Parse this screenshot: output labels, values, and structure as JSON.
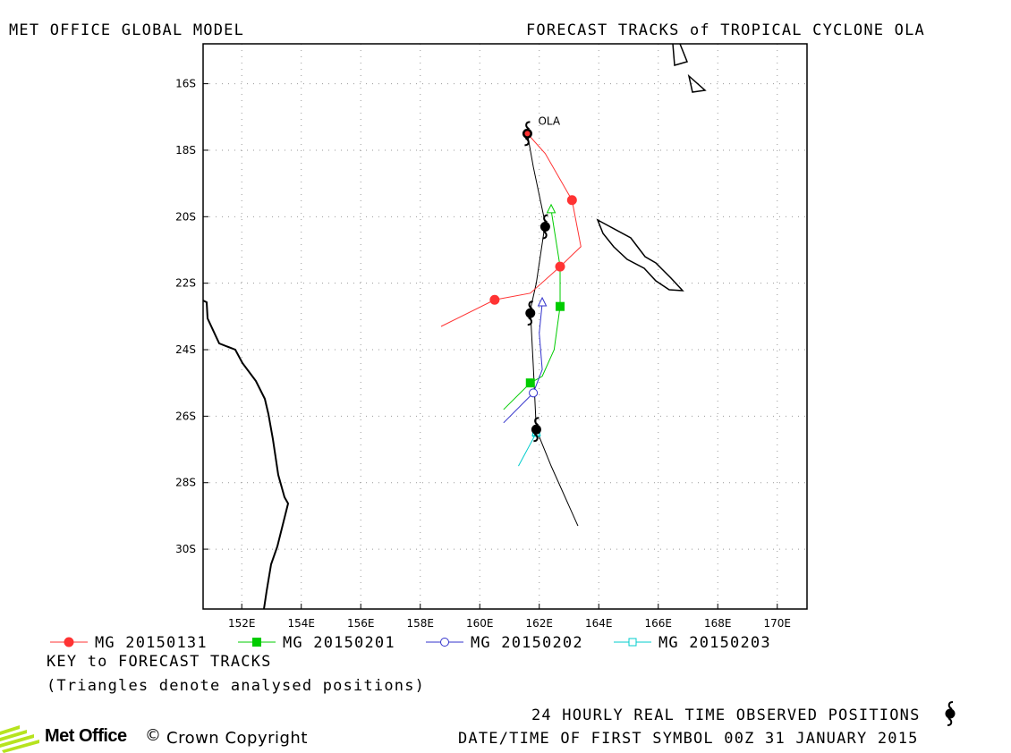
{
  "header": {
    "left_title": "MET OFFICE GLOBAL MODEL",
    "right_title": "FORECAST TRACKS of TROPICAL CYCLONE OLA"
  },
  "chart_data": {
    "type": "map",
    "lon_range": [
      150.7,
      171.0
    ],
    "lat_range": [
      -31.8,
      -14.8
    ],
    "lon_ticks": [
      "152E",
      "154E",
      "156E",
      "158E",
      "160E",
      "162E",
      "164E",
      "166E",
      "168E",
      "170E"
    ],
    "lat_ticks": [
      "16S",
      "18S",
      "20S",
      "22S",
      "24S",
      "26S",
      "28S",
      "30S"
    ],
    "lon_tick_values": [
      152,
      154,
      156,
      158,
      160,
      162,
      164,
      166,
      168,
      170
    ],
    "lat_tick_values": [
      -16,
      -18,
      -20,
      -22,
      -24,
      -26,
      -28,
      -30
    ],
    "grid": "dotted",
    "storm_label": "OLA",
    "observed_track": {
      "points": [
        [
          161.6,
          -17.5
        ],
        [
          161.8,
          -18.5
        ],
        [
          162.2,
          -20.2
        ],
        [
          161.9,
          -22.0
        ],
        [
          161.7,
          -22.8
        ],
        [
          161.8,
          -24.5
        ],
        [
          161.9,
          -26.4
        ],
        [
          162.4,
          -27.5
        ],
        [
          163.3,
          -29.3
        ]
      ],
      "symbols": [
        [
          161.6,
          -17.5
        ],
        [
          162.2,
          -20.3
        ],
        [
          161.7,
          -22.9
        ],
        [
          161.9,
          -26.4
        ]
      ]
    },
    "series": [
      {
        "name": "MG 20150131",
        "color": "#ff3333",
        "marker": "filled-circle",
        "points": [
          [
            161.6,
            -17.5
          ],
          [
            162.2,
            -18.1
          ],
          [
            163.1,
            -19.5
          ],
          [
            163.4,
            -20.9
          ],
          [
            162.7,
            -21.5
          ],
          [
            161.7,
            -22.3
          ],
          [
            160.5,
            -22.5
          ],
          [
            158.7,
            -23.3
          ]
        ],
        "markers": [
          [
            163.1,
            -19.5
          ],
          [
            162.7,
            -21.5
          ],
          [
            160.5,
            -22.5
          ]
        ]
      },
      {
        "name": "MG 20150201",
        "color": "#00cc00",
        "marker": "filled-square",
        "points": [
          [
            162.4,
            -19.8
          ],
          [
            162.7,
            -21.5
          ],
          [
            162.7,
            -22.7
          ],
          [
            162.5,
            -24.0
          ],
          [
            162.1,
            -24.8
          ],
          [
            161.7,
            -25.0
          ],
          [
            160.8,
            -25.8
          ]
        ],
        "markers": [
          [
            162.7,
            -22.7
          ],
          [
            161.7,
            -25.0
          ]
        ],
        "start_triangle": [
          162.4,
          -19.8
        ]
      },
      {
        "name": "MG 20150202",
        "color": "#3333cc",
        "marker": "open-circle",
        "points": [
          [
            162.1,
            -22.6
          ],
          [
            162.0,
            -23.5
          ],
          [
            162.1,
            -24.6
          ],
          [
            161.8,
            -25.3
          ],
          [
            160.8,
            -26.2
          ]
        ],
        "markers": [
          [
            161.8,
            -25.3
          ]
        ],
        "start_triangle": [
          162.1,
          -22.6
        ]
      },
      {
        "name": "MG 20150203",
        "color": "#00cccc",
        "marker": "open-square",
        "points": [
          [
            161.9,
            -26.5
          ],
          [
            161.6,
            -27.0
          ],
          [
            161.3,
            -27.5
          ]
        ],
        "markers": [
          [
            161.9,
            -26.5
          ]
        ],
        "start_triangle": [
          161.9,
          -26.5
        ]
      }
    ]
  },
  "footer": {
    "key_title": "KEY to FORECAST TRACKS",
    "key_note": "(Triangles denote analysed positions)",
    "observed_note": "24 HOURLY REAL TIME OBSERVED POSITIONS",
    "datetime_note": "DATE/TIME OF FIRST SYMBOL 00Z 31 JANUARY 2015",
    "logo_text": "Met Office",
    "copyright": "Crown Copyright",
    "copyright_symbol": "©"
  }
}
